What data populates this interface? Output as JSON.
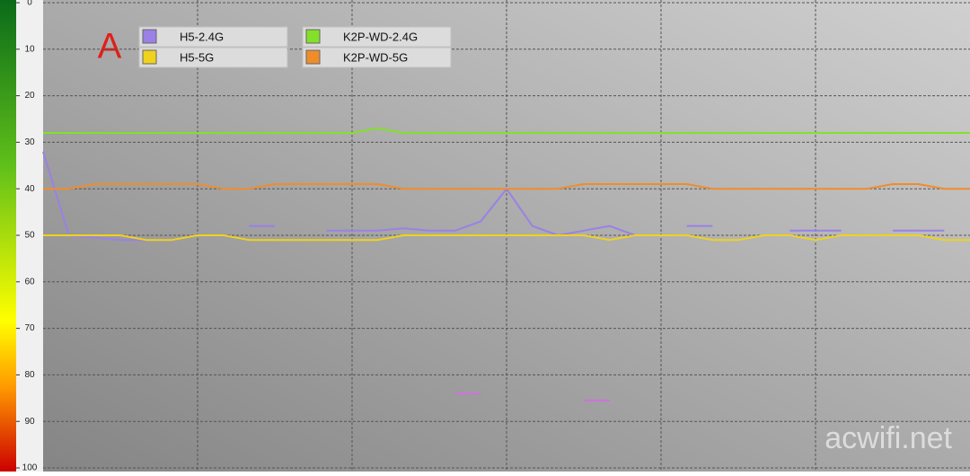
{
  "chart_data": {
    "type": "line",
    "annotation": "A",
    "watermark": "acwifi.net",
    "categories": [
      null,
      null,
      null,
      null,
      null,
      null,
      null,
      null,
      null,
      null,
      null,
      null,
      null,
      null,
      null,
      null,
      null,
      null,
      null,
      null,
      null,
      null,
      null,
      null,
      null,
      null,
      null,
      null,
      null,
      null,
      null,
      null,
      null,
      null,
      null,
      null,
      null
    ],
    "ylim": [
      0,
      100
    ],
    "invert_y": true,
    "yticks": [
      0,
      10,
      20,
      30,
      40,
      50,
      60,
      70,
      80,
      90,
      100
    ],
    "grid": true,
    "legend": "top-left",
    "series": [
      {
        "name": "H5-2.4G",
        "color": "#9b80e6",
        "values": [
          32,
          50,
          50.5,
          51,
          51,
          51,
          null,
          null,
          48,
          48,
          null,
          49,
          49,
          49,
          48.5,
          49,
          49,
          47,
          40,
          48,
          50,
          49,
          48,
          50,
          null,
          48,
          48,
          null,
          null,
          49,
          49,
          49,
          null,
          49,
          49,
          49,
          null
        ]
      },
      {
        "name": "H5-5G",
        "color": "#f0d21c",
        "values": [
          50,
          50,
          50,
          50,
          51,
          51,
          50,
          50,
          51,
          51,
          51,
          51,
          51,
          51,
          50,
          50,
          50,
          50,
          50,
          50,
          50,
          50,
          51,
          50,
          50,
          50,
          51,
          51,
          50,
          50,
          51,
          50,
          50,
          50,
          50,
          51,
          51
        ]
      },
      {
        "name": "K2P-WD-2.4G",
        "color": "#84e028",
        "values": [
          28,
          28,
          28,
          28,
          28,
          28,
          28,
          28,
          28,
          28,
          28,
          28,
          28,
          27,
          28,
          28,
          28,
          28,
          28,
          28,
          28,
          28,
          28,
          28,
          28,
          28,
          28,
          28,
          28,
          28,
          28,
          28,
          28,
          28,
          28,
          28,
          28
        ]
      },
      {
        "name": "K2P-WD-5G",
        "color": "#f08c2c",
        "values": [
          40,
          40,
          39,
          39,
          39,
          39,
          39,
          40,
          40,
          39,
          39,
          39,
          39,
          39,
          40,
          40,
          40,
          40,
          40,
          40,
          40,
          39,
          39,
          39,
          39,
          39,
          40,
          40,
          40,
          40,
          40,
          40,
          40,
          39,
          39,
          40,
          40
        ]
      },
      {
        "color": "#d070e0",
        "values": [
          null,
          null,
          null,
          null,
          null,
          null,
          null,
          null,
          null,
          null,
          null,
          null,
          null,
          null,
          null,
          null,
          84,
          84,
          null,
          null,
          null,
          85.5,
          85.5,
          null,
          null,
          null,
          null,
          null,
          null,
          null,
          null,
          null,
          null,
          null,
          null,
          null,
          null
        ]
      }
    ]
  }
}
